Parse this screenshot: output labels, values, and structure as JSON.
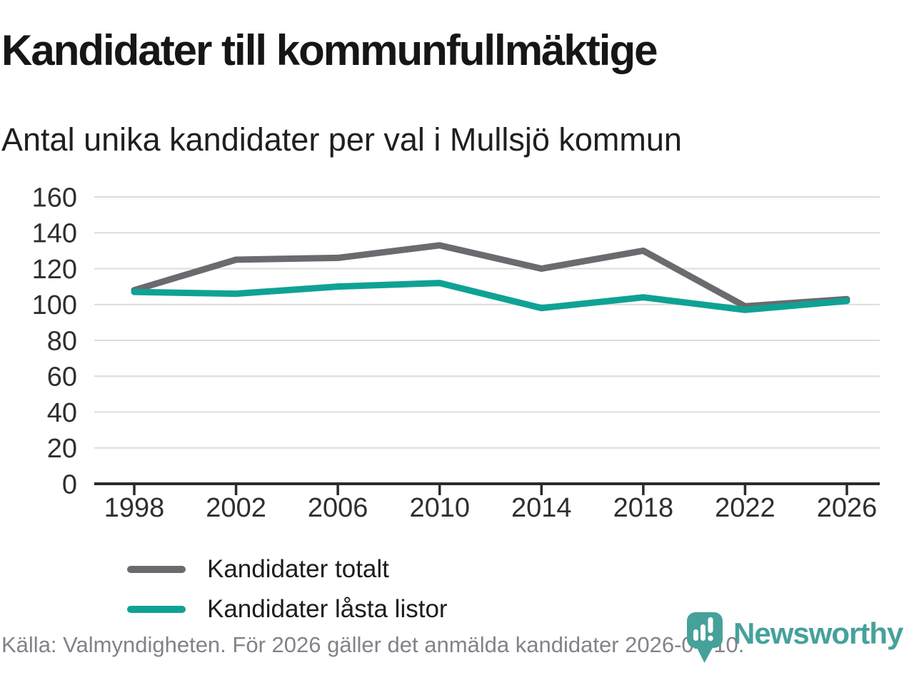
{
  "header": {
    "title": "Kandidater till kommunfullmäktige",
    "subtitle": "Antal unika kandidater per val i Mullsjö kommun"
  },
  "chart_data": {
    "type": "line",
    "title": "Kandidater till kommunfullmäktige",
    "subtitle": "Antal unika kandidater per val i Mullsjö kommun",
    "categories": [
      "1998",
      "2002",
      "2006",
      "2010",
      "2014",
      "2018",
      "2022",
      "2026"
    ],
    "series": [
      {
        "name": "Kandidater totalt",
        "color": "#6a6a6f",
        "values": [
          108,
          125,
          126,
          133,
          120,
          130,
          99,
          103
        ]
      },
      {
        "name": "Kandidater låsta listor",
        "color": "#0fa294",
        "values": [
          107,
          106,
          110,
          112,
          98,
          104,
          97,
          102
        ]
      }
    ],
    "xlabel": "",
    "ylabel": "",
    "ylim": [
      0,
      160
    ],
    "ytick_step": 20,
    "grid": "horizontal",
    "legend_position": "inside-lower-left",
    "grid_color": "#dcdcdc",
    "axis_color": "#2b2b2b"
  },
  "footer": {
    "source": "Källa: Valmyndigheten. För 2026 gäller det anmälda kandidater 2026-04-10."
  },
  "branding": {
    "name": "Newsworthy",
    "logo_icon": "bar-chart-pin-icon",
    "color": "#46a19b"
  }
}
